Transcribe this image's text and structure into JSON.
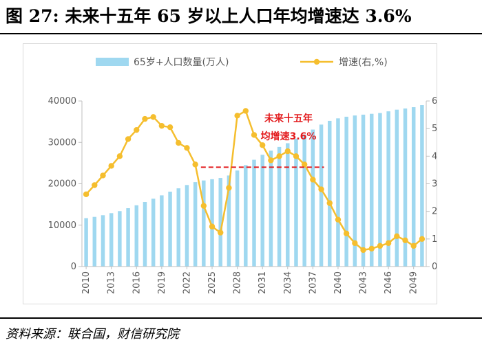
{
  "figure": {
    "title": "图 27:  未来十五年 65 岁以上人口年均增速达 3.6%",
    "source": "资料来源：联合国，财信研究院"
  },
  "colors": {
    "bar": "#9fd8f0",
    "line": "#f5be2e",
    "annotation": "#e31a1c",
    "axis": "#bfbfbf",
    "tick": "#595959"
  },
  "chart_data": {
    "type": "bar",
    "title": "",
    "years": [
      2010,
      2011,
      2012,
      2013,
      2014,
      2015,
      2016,
      2017,
      2018,
      2019,
      2020,
      2021,
      2022,
      2023,
      2024,
      2025,
      2026,
      2027,
      2028,
      2029,
      2030,
      2031,
      2032,
      2033,
      2034,
      2035,
      2036,
      2037,
      2038,
      2039,
      2040,
      2041,
      2042,
      2043,
      2044,
      2045,
      2046,
      2047,
      2048,
      2049,
      2050
    ],
    "x_tick_labels": [
      "2010",
      "2013",
      "2016",
      "2019",
      "2022",
      "2025",
      "2028",
      "2031",
      "2034",
      "2037",
      "2040",
      "2043",
      "2046",
      "2049"
    ],
    "series": [
      {
        "name": "65岁+人口数量(万人)",
        "type": "bar",
        "axis": "left",
        "values": [
          11700,
          12000,
          12400,
          12900,
          13400,
          14100,
          14800,
          15600,
          16400,
          17200,
          18100,
          18900,
          19700,
          20400,
          20800,
          21100,
          21400,
          22000,
          23200,
          24500,
          25800,
          27000,
          28000,
          28900,
          29800,
          30900,
          31900,
          33100,
          34300,
          35200,
          35800,
          36200,
          36500,
          36700,
          36900,
          37100,
          37500,
          37900,
          38200,
          38500,
          39000
        ]
      },
      {
        "name": "增速(右,%)",
        "type": "line",
        "axis": "right",
        "values": [
          2.62,
          2.95,
          3.3,
          3.65,
          4.0,
          4.62,
          4.95,
          5.35,
          5.42,
          5.1,
          5.05,
          4.48,
          4.3,
          3.7,
          2.2,
          1.45,
          1.23,
          2.85,
          5.47,
          5.64,
          4.77,
          4.4,
          3.85,
          4.0,
          4.18,
          4.0,
          3.7,
          3.15,
          2.8,
          2.3,
          1.7,
          1.2,
          0.85,
          0.6,
          0.65,
          0.75,
          0.85,
          1.1,
          0.95,
          0.75,
          1.0
        ]
      }
    ],
    "y_left": {
      "min": 0,
      "max": 40000,
      "ticks": [
        "0",
        "10000",
        "20000",
        "30000",
        "40000"
      ]
    },
    "y_right": {
      "min": 0,
      "max": 6,
      "ticks": [
        "0.0",
        "1.0",
        "2.0",
        "3.0",
        "4.0",
        "5.0",
        "6.0"
      ]
    },
    "legend_position": "top",
    "annotation": {
      "lines": [
        "未来十五年",
        "均增速3.6%"
      ],
      "value": 3.6,
      "from_year": 2024,
      "to_year": 2038
    }
  }
}
